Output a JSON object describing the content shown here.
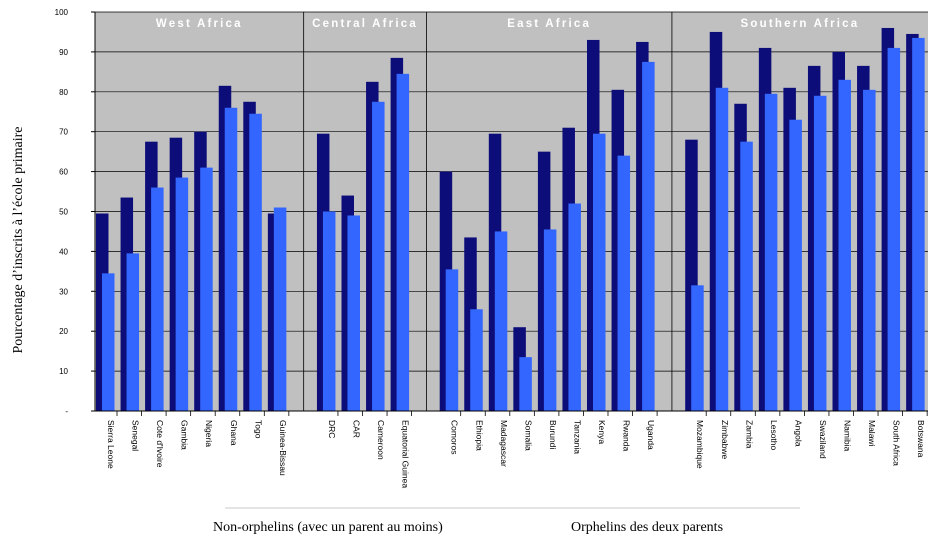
{
  "chart_data": {
    "type": "bar",
    "ylabel": "Pourcentage d’inscrits à l’école primaire",
    "ylim": [
      0,
      100
    ],
    "yticks": [
      "-",
      "10",
      "20",
      "30",
      "40",
      "50",
      "60",
      "70",
      "80",
      "90",
      "100"
    ],
    "grid": true,
    "regions": [
      {
        "name": "West Africa",
        "countries": [
          "Sierra Leone",
          "Senegal",
          "Cote d'Ivoire",
          "Gambia",
          "Nigeria",
          "Ghana",
          "Togo",
          "Guinea-Bissau"
        ]
      },
      {
        "name": "Central Africa",
        "countries": [
          "DRC",
          "CAR",
          "Cameroon",
          "Equatorial Guinea"
        ]
      },
      {
        "name": "East Africa",
        "countries": [
          "Comoros",
          "Ethiopia",
          "Madagascar",
          "Somalia",
          "Burundi",
          "Tanzania",
          "Kenya",
          "Rwanda",
          "Uganda"
        ]
      },
      {
        "name": "Southern Africa",
        "countries": [
          "Mozambique",
          "Zimbabwe",
          "Zambia",
          "Lesotho",
          "Angola",
          "Swaziland",
          "Namibia",
          "Malawi",
          "South Africa",
          "Botswana"
        ]
      }
    ],
    "categories": [
      "Sierra Leone",
      "Senegal",
      "Cote d'Ivoire",
      "Gambia",
      "Nigeria",
      "Ghana",
      "Togo",
      "Guinea-Bissau",
      "DRC",
      "CAR",
      "Cameroon",
      "Equatorial Guinea",
      "Comoros",
      "Ethiopia",
      "Madagascar",
      "Somalia",
      "Burundi",
      "Tanzania",
      "Kenya",
      "Rwanda",
      "Uganda",
      "Mozambique",
      "Zimbabwe",
      "Zambia",
      "Lesotho",
      "Angola",
      "Swaziland",
      "Namibia",
      "Malawi",
      "South Africa",
      "Botswana"
    ],
    "series": [
      {
        "name": "Non-orphelins (avec un parent au moins)",
        "color": "#0d0d7a",
        "values": [
          49.5,
          53.5,
          67.5,
          68.5,
          70,
          81.5,
          77.5,
          49.5,
          69.5,
          54,
          82.5,
          88.5,
          60,
          43.5,
          69.5,
          21,
          65,
          71,
          93,
          80.5,
          92.5,
          68,
          95,
          77,
          91,
          81,
          86.5,
          90,
          86.5,
          96,
          94.5
        ]
      },
      {
        "name": "Orphelins des deux parents",
        "color": "#3366ff",
        "values": [
          34.5,
          39.5,
          56,
          58.5,
          61,
          76,
          74.5,
          51,
          50,
          49,
          77.5,
          84.5,
          35.5,
          25.5,
          45,
          13.5,
          45.5,
          52,
          69.5,
          64,
          87.5,
          31.5,
          81,
          67.5,
          79.5,
          73,
          79,
          83,
          80.5,
          91,
          93.5
        ]
      }
    ],
    "legend_position": "bottom"
  },
  "colors": {
    "plot_bg": "#c0c0c0",
    "grid": "#000000"
  }
}
